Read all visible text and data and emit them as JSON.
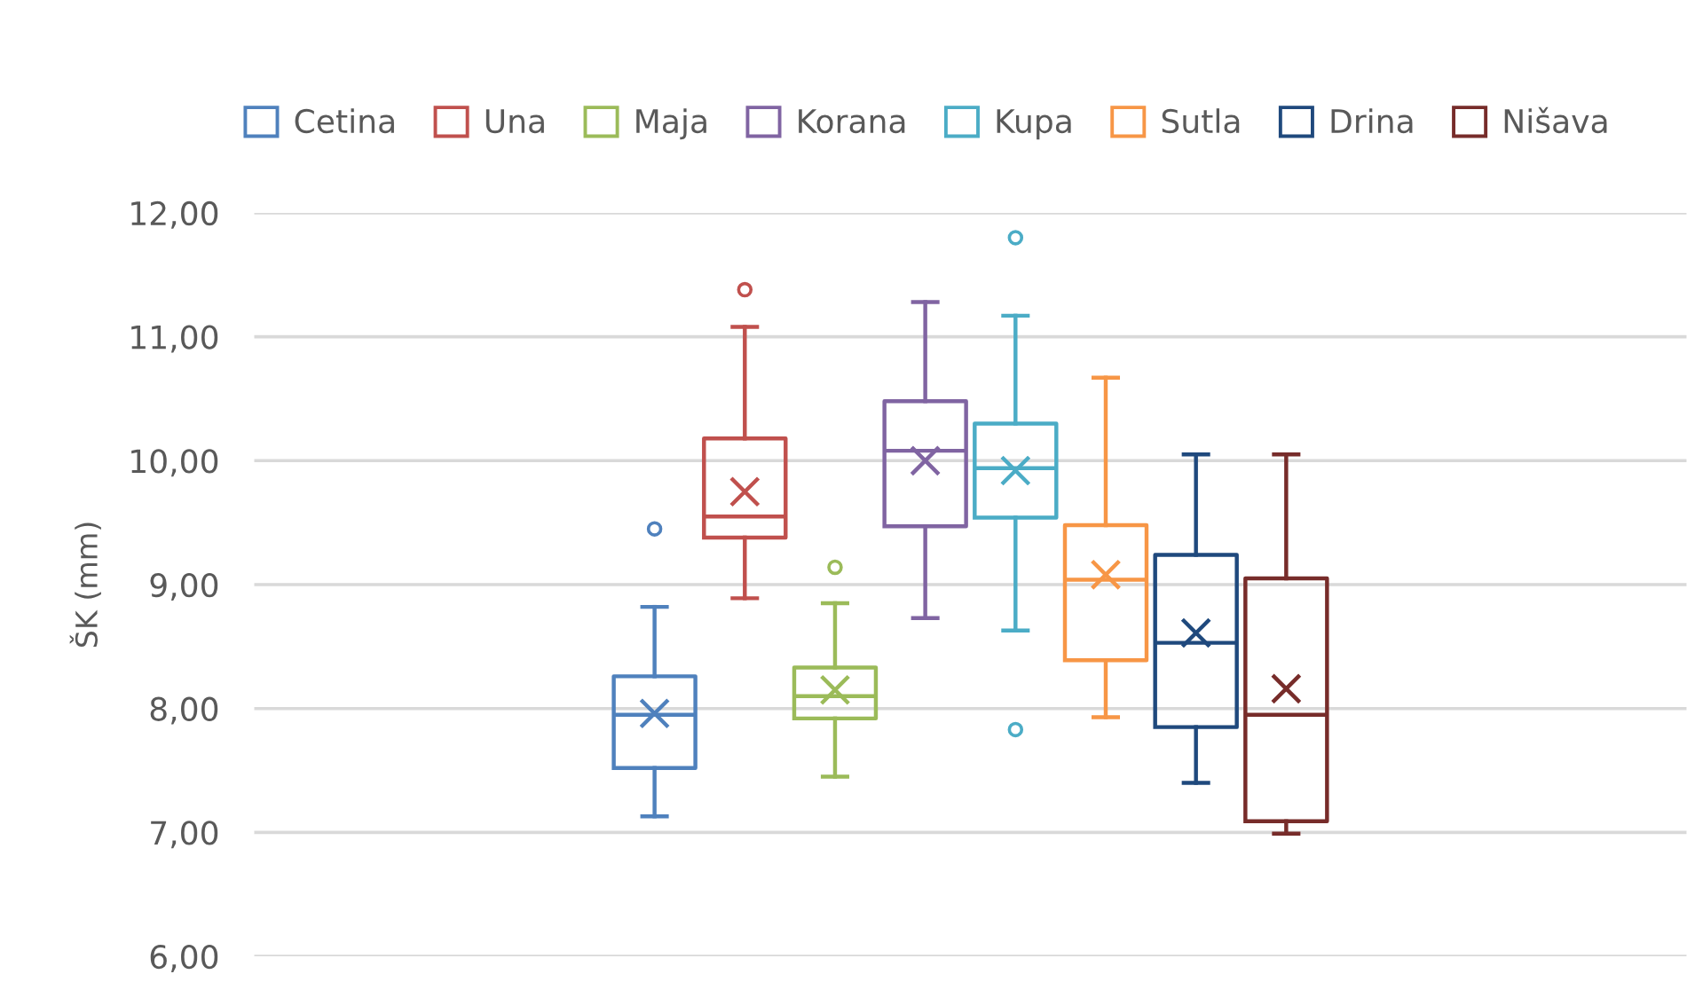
{
  "chart_data": {
    "type": "box",
    "ylabel": "ŠK (mm)",
    "categories": [
      null
    ],
    "ylim": [
      6,
      12
    ],
    "yticks": [
      {
        "value": 6,
        "label": "6,00"
      },
      {
        "value": 7,
        "label": "7,00"
      },
      {
        "value": 8,
        "label": "8,00"
      },
      {
        "value": 9,
        "label": "9,00"
      },
      {
        "value": 10,
        "label": "10,00"
      },
      {
        "value": 11,
        "label": "11,00"
      },
      {
        "value": 12,
        "label": "12,00"
      }
    ],
    "grid": "y",
    "legend": "top",
    "tick_labels": "y",
    "marker": "circle",
    "series": [
      {
        "name": "Cetina",
        "color": "#4f81bd",
        "boxes": [
          {
            "low": 7.13,
            "q1": 7.52,
            "median": 7.95,
            "q3": 8.26,
            "high": 8.82,
            "mean": 7.96,
            "outliers": [
              9.45
            ]
          }
        ]
      },
      {
        "name": "Una",
        "color": "#c0504d",
        "boxes": [
          {
            "low": 8.89,
            "q1": 9.38,
            "median": 9.55,
            "q3": 10.18,
            "high": 11.08,
            "mean": 9.75,
            "outliers": [
              11.38
            ]
          }
        ]
      },
      {
        "name": "Maja",
        "color": "#9bbb59",
        "boxes": [
          {
            "low": 7.45,
            "q1": 7.92,
            "median": 8.1,
            "q3": 8.33,
            "high": 8.85,
            "mean": 8.15,
            "outliers": [
              9.14
            ]
          }
        ]
      },
      {
        "name": "Korana",
        "color": "#8064a2",
        "boxes": [
          {
            "low": 8.73,
            "q1": 9.47,
            "median": 10.08,
            "q3": 10.48,
            "high": 11.28,
            "mean": 10.0
          }
        ]
      },
      {
        "name": "Kupa",
        "color": "#4bacc6",
        "boxes": [
          {
            "low": 8.63,
            "q1": 9.54,
            "median": 9.94,
            "q3": 10.3,
            "high": 11.17,
            "mean": 9.92,
            "outliers": [
              11.8,
              7.83
            ]
          }
        ]
      },
      {
        "name": "Sutla",
        "color": "#f79646",
        "boxes": [
          {
            "low": 7.93,
            "q1": 8.39,
            "median": 9.04,
            "q3": 9.48,
            "high": 10.67,
            "mean": 9.08
          }
        ]
      },
      {
        "name": "Drina",
        "color": "#1f497d",
        "boxes": [
          {
            "low": 7.4,
            "q1": 7.85,
            "median": 8.53,
            "q3": 9.24,
            "high": 10.05,
            "mean": 8.61
          }
        ]
      },
      {
        "name": "Nišava",
        "color": "#772c2a",
        "boxes": [
          {
            "low": 6.99,
            "q1": 7.09,
            "median": 7.95,
            "q3": 9.05,
            "high": 10.05,
            "mean": 8.16
          }
        ]
      }
    ]
  }
}
